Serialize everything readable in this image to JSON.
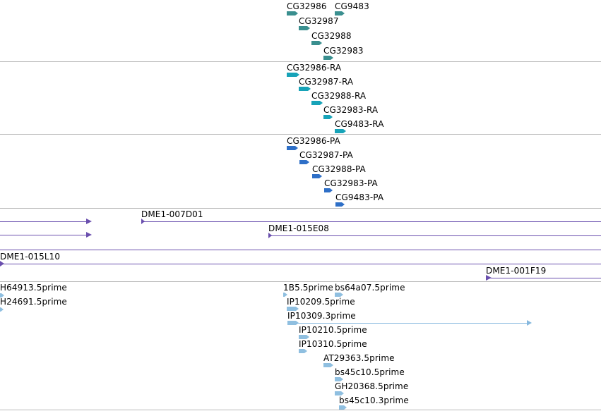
{
  "track_genes": {
    "labels": [
      "CG32986",
      "CG9483",
      "CG32987",
      "CG32988",
      "CG32983"
    ]
  },
  "track_transcripts": {
    "labels": [
      "CG32986-RA",
      "CG32987-RA",
      "CG32988-RA",
      "CG32983-RA",
      "CG9483-RA"
    ]
  },
  "track_proteins": {
    "labels": [
      "CG32986-PA",
      "CG32987-PA",
      "CG32988-PA",
      "CG32983-PA",
      "CG9483-PA"
    ]
  },
  "track_clones": {
    "labels": [
      "DME1-007D01",
      "DME1-015E08",
      "DME1-015L10",
      "DME1-001F19"
    ]
  },
  "track_ests": {
    "labels": [
      "H64913.5prime",
      "H24691.5prime",
      "1B5.5prime",
      "bs64a07.5prime",
      "IP10209.5prime",
      "IP10309.3prime",
      "IP10210.5prime",
      "IP10310.5prime",
      "AT29363.5prime",
      "bs45c10.5prime",
      "GH20368.5prime",
      "bs45c10.3prime"
    ]
  },
  "colors": {
    "gene": "#3a8f8f",
    "transcript": "#17a3b8",
    "protein": "#2e6fc7",
    "clone": "#6a4fae",
    "est": "#8fbfe0"
  }
}
